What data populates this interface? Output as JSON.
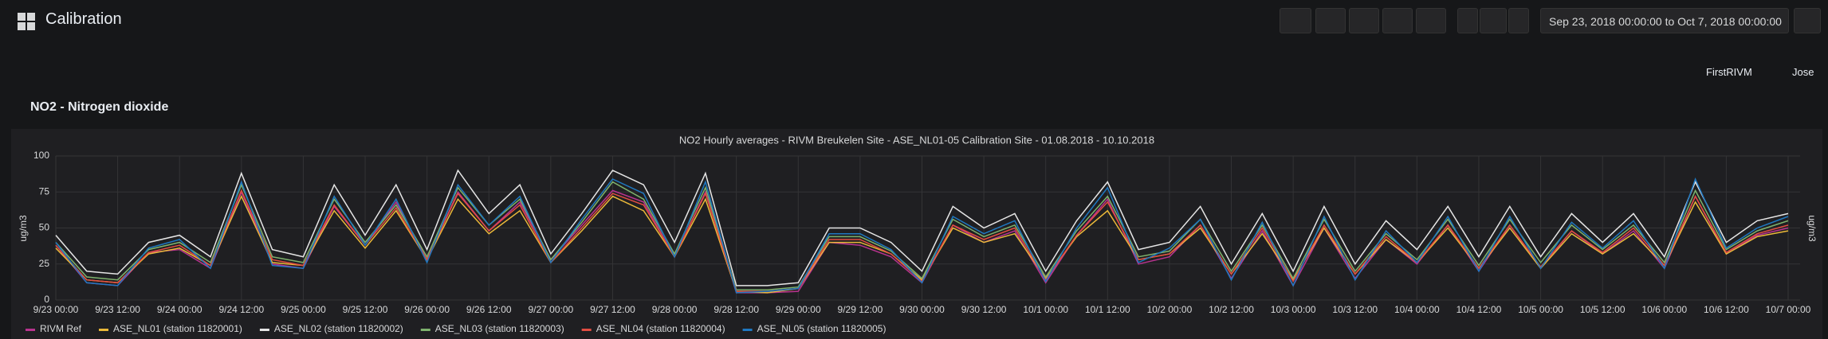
{
  "header": {
    "title": "Calibration",
    "time_range": "Sep 23, 2018 00:00:00 to Oct 7, 2018 00:00:00"
  },
  "links": [
    "FirstRIVM",
    "Jose"
  ],
  "row_title": "NO2 - Nitrogen dioxide",
  "chart_data": {
    "type": "line",
    "title": "NO2 Hourly averages - RIVM Breukelen Site - ASE_NL01-05 Calibration Site - 01.08.2018 - 10.10.2018",
    "ylabel": "ug/m3",
    "y2label": "ug/m3",
    "ylim": [
      0,
      100
    ],
    "yticks": [
      0,
      25,
      50,
      75,
      100
    ],
    "grid": true,
    "x": [
      "9/23 00:00",
      "9/23 06:00",
      "9/23 12:00",
      "9/23 18:00",
      "9/24 00:00",
      "9/24 06:00",
      "9/24 12:00",
      "9/24 18:00",
      "9/25 00:00",
      "9/25 06:00",
      "9/25 12:00",
      "9/25 18:00",
      "9/26 00:00",
      "9/26 06:00",
      "9/26 12:00",
      "9/26 18:00",
      "9/27 00:00",
      "9/27 06:00",
      "9/27 12:00",
      "9/27 18:00",
      "9/28 00:00",
      "9/28 06:00",
      "9/28 12:00",
      "9/28 18:00",
      "9/29 00:00",
      "9/29 06:00",
      "9/29 12:00",
      "9/29 18:00",
      "9/30 00:00",
      "9/30 06:00",
      "9/30 12:00",
      "9/30 18:00",
      "10/1 00:00",
      "10/1 06:00",
      "10/1 12:00",
      "10/1 18:00",
      "10/2 00:00",
      "10/2 06:00",
      "10/2 12:00",
      "10/2 18:00",
      "10/3 00:00",
      "10/3 06:00",
      "10/3 12:00",
      "10/3 18:00",
      "10/4 00:00",
      "10/4 06:00",
      "10/4 12:00",
      "10/4 18:00",
      "10/5 00:00",
      "10/5 06:00",
      "10/5 12:00",
      "10/5 18:00",
      "10/6 00:00",
      "10/6 06:00",
      "10/6 12:00",
      "10/6 18:00",
      "10/7 00:00"
    ],
    "series": [
      {
        "name": "RIVM Ref",
        "color": "#b8338f",
        "values": [
          38,
          12,
          10,
          33,
          35,
          22,
          75,
          25,
          22,
          65,
          38,
          68,
          28,
          75,
          48,
          68,
          28,
          52,
          76,
          68,
          30,
          75,
          5,
          5,
          6,
          40,
          38,
          30,
          12,
          52,
          40,
          48,
          12,
          45,
          70,
          25,
          30,
          52,
          15,
          48,
          10,
          50,
          15,
          42,
          25,
          52,
          20,
          52,
          22,
          48,
          32,
          48,
          22,
          72,
          32,
          45,
          50
        ]
      },
      {
        "name": "ASE_NL01 (station 11820001)",
        "color": "#eab839",
        "values": [
          36,
          14,
          12,
          32,
          36,
          24,
          72,
          26,
          24,
          62,
          36,
          62,
          28,
          70,
          46,
          62,
          26,
          48,
          72,
          62,
          30,
          70,
          6,
          5,
          8,
          40,
          40,
          32,
          14,
          50,
          40,
          46,
          15,
          44,
          62,
          28,
          32,
          50,
          18,
          46,
          14,
          50,
          18,
          42,
          26,
          50,
          22,
          50,
          22,
          46,
          32,
          46,
          24,
          68,
          32,
          44,
          48
        ]
      },
      {
        "name": "ASE_NL02 (station 11820002)",
        "color": "#e6e6e6",
        "values": [
          45,
          20,
          18,
          40,
          45,
          30,
          88,
          35,
          30,
          80,
          45,
          80,
          35,
          90,
          60,
          80,
          32,
          60,
          90,
          80,
          40,
          88,
          10,
          10,
          12,
          50,
          50,
          40,
          20,
          65,
          50,
          60,
          20,
          55,
          82,
          35,
          40,
          65,
          25,
          60,
          20,
          65,
          25,
          55,
          35,
          65,
          30,
          65,
          30,
          60,
          40,
          60,
          30,
          82,
          40,
          55,
          60
        ]
      },
      {
        "name": "ASE_NL03 (station 11820003)",
        "color": "#7eb26d",
        "values": [
          40,
          16,
          14,
          35,
          40,
          26,
          80,
          30,
          26,
          70,
          40,
          66,
          30,
          78,
          52,
          70,
          28,
          54,
          82,
          70,
          32,
          78,
          7,
          7,
          9,
          44,
          44,
          34,
          15,
          56,
          44,
          52,
          16,
          48,
          72,
          30,
          34,
          56,
          20,
          52,
          15,
          56,
          20,
          46,
          28,
          56,
          24,
          56,
          26,
          52,
          35,
          52,
          26,
          76,
          35,
          48,
          55
        ]
      },
      {
        "name": "ASE_NL04 (station 11820004)",
        "color": "#e24d42",
        "values": [
          38,
          14,
          12,
          33,
          38,
          24,
          76,
          28,
          24,
          66,
          38,
          64,
          28,
          74,
          48,
          66,
          26,
          50,
          74,
          66,
          30,
          74,
          6,
          6,
          8,
          42,
          42,
          32,
          13,
          52,
          42,
          50,
          14,
          45,
          68,
          28,
          32,
          52,
          18,
          50,
          13,
          52,
          18,
          44,
          26,
          52,
          22,
          52,
          23,
          48,
          33,
          50,
          24,
          72,
          33,
          46,
          52
        ]
      },
      {
        "name": "ASE_NL05 (station 11820005)",
        "color": "#1f78c1",
        "values": [
          40,
          12,
          10,
          36,
          42,
          22,
          82,
          24,
          22,
          72,
          38,
          70,
          26,
          80,
          52,
          72,
          26,
          56,
          84,
          74,
          30,
          82,
          5,
          6,
          8,
          46,
          46,
          35,
          12,
          58,
          46,
          55,
          13,
          50,
          78,
          26,
          36,
          56,
          14,
          54,
          10,
          58,
          14,
          48,
          26,
          58,
          20,
          58,
          22,
          54,
          36,
          55,
          22,
          84,
          36,
          50,
          58
        ]
      }
    ]
  }
}
